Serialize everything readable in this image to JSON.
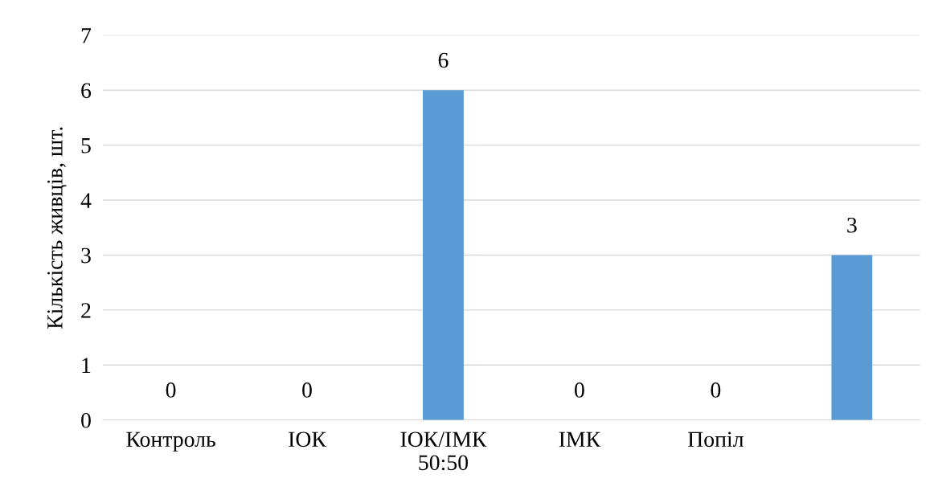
{
  "chart_data": {
    "type": "bar",
    "ylabel": "Кількість живців, шт.",
    "categories": [
      "Контроль",
      "ІОК",
      "ІОК/ІМК\n50:50",
      "ІМК",
      "Попіл",
      null
    ],
    "values": [
      0,
      0,
      6,
      0,
      0,
      3
    ],
    "color": "#5b9bd5",
    "ylim": [
      0,
      7
    ],
    "yticks": [
      0,
      1,
      2,
      3,
      4,
      5,
      6,
      7
    ],
    "grid": "y",
    "data_labels": true
  }
}
